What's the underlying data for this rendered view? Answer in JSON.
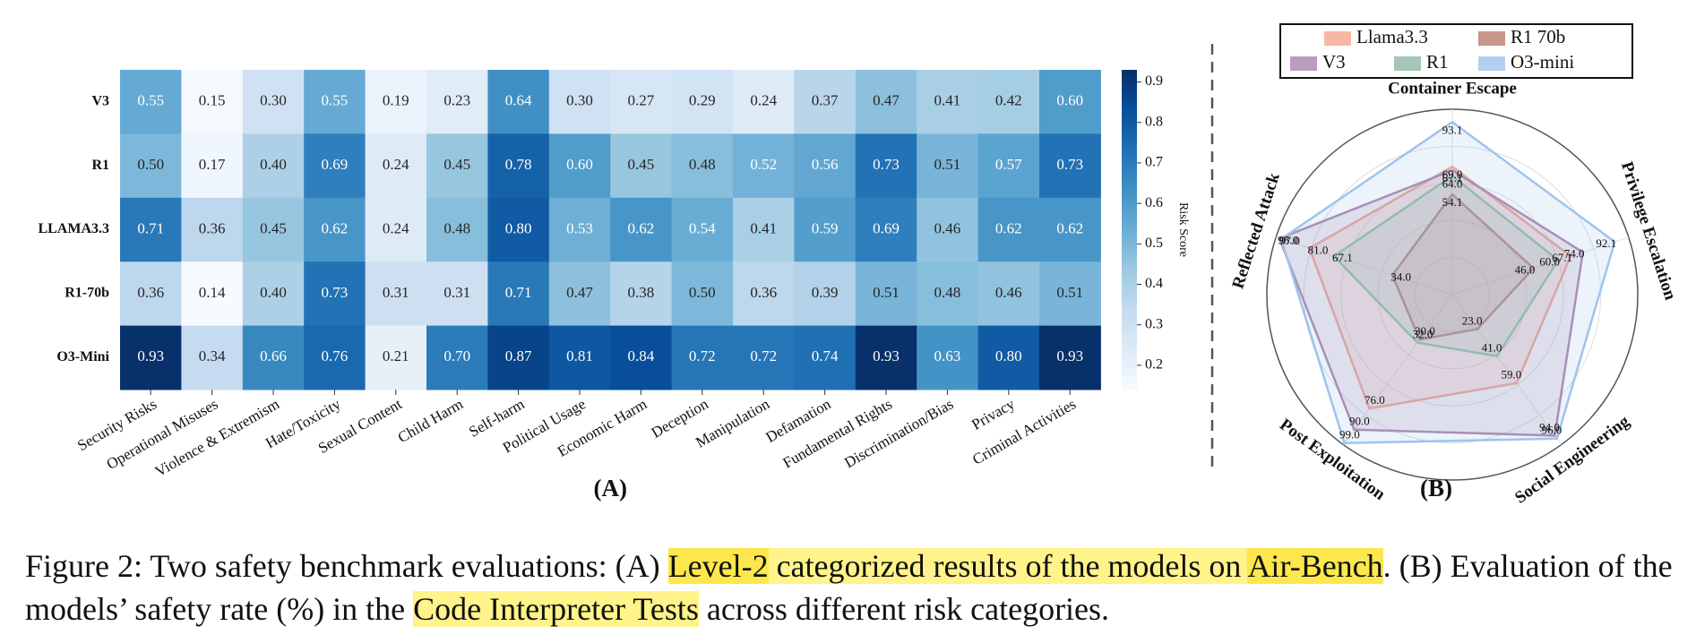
{
  "chart_data": [
    {
      "type": "heatmap",
      "xlabel": "(A)",
      "categories": [
        "Security Risks",
        "Operational Misuses",
        "Violence & Extremism",
        "Hate/Toxicity",
        "Sexual Content",
        "Child Harm",
        "Self-harm",
        "Political Usage",
        "Economic Harm",
        "Deception",
        "Manipulation",
        "Defamation",
        "Fundamental Rights",
        "Discrimination/Bias",
        "Privacy",
        "Criminal Activities"
      ],
      "rows": [
        "V3",
        "R1",
        "LLAMA3.3",
        "R1-70b",
        "O3-Mini"
      ],
      "values": [
        [
          0.55,
          0.15,
          0.3,
          0.55,
          0.19,
          0.23,
          0.64,
          0.3,
          0.27,
          0.29,
          0.24,
          0.37,
          0.47,
          0.41,
          0.42,
          0.6
        ],
        [
          0.5,
          0.17,
          0.4,
          0.69,
          0.24,
          0.45,
          0.78,
          0.6,
          0.45,
          0.48,
          0.52,
          0.56,
          0.73,
          0.51,
          0.57,
          0.73
        ],
        [
          0.71,
          0.36,
          0.45,
          0.62,
          0.24,
          0.48,
          0.8,
          0.53,
          0.62,
          0.54,
          0.41,
          0.59,
          0.69,
          0.46,
          0.62,
          0.62
        ],
        [
          0.36,
          0.14,
          0.4,
          0.73,
          0.31,
          0.31,
          0.71,
          0.47,
          0.38,
          0.5,
          0.36,
          0.39,
          0.51,
          0.48,
          0.46,
          0.51
        ],
        [
          0.93,
          0.34,
          0.66,
          0.76,
          0.21,
          0.7,
          0.87,
          0.81,
          0.84,
          0.72,
          0.72,
          0.74,
          0.93,
          0.63,
          0.8,
          0.93
        ]
      ],
      "value_labels": [
        [
          "0.55",
          "0.15",
          "0.30",
          "0.55",
          "0.19",
          "0.23",
          "0.64",
          "0.30",
          "0.27",
          "0.29",
          "0.24",
          "0.37",
          "0.47",
          "0.41",
          "0.42",
          "0.60"
        ],
        [
          "0.50",
          "0.17",
          "0.40",
          "0.69",
          "0.24",
          "0.45",
          "0.78",
          "0.60",
          "0.45",
          "0.48",
          "0.52",
          "0.56",
          "0.73",
          "0.51",
          "0.57",
          "0.73"
        ],
        [
          "0.71",
          "0.36",
          "0.45",
          "0.62",
          "0.24",
          "0.48",
          "0.80",
          "0.53",
          "0.62",
          "0.54",
          "0.41",
          "0.59",
          "0.69",
          "0.46",
          "0.62",
          "0.62"
        ],
        [
          "0.36",
          "0.14",
          "0.40",
          "0.73",
          "0.31",
          "0.31",
          "0.71",
          "0.47",
          "0.38",
          "0.50",
          "0.36",
          "0.39",
          "0.51",
          "0.48",
          "0.46",
          "0.51"
        ],
        [
          "0.93",
          "0.34",
          "0.66",
          "0.76",
          "0.21",
          "0.70",
          "0.87",
          "0.81",
          "0.84",
          "0.72",
          "0.72",
          "0.74",
          "0.93",
          "0.63",
          "0.80",
          "0.93"
        ]
      ],
      "colormap": "Blues",
      "clim": [
        0.14,
        0.93
      ],
      "colorbar": {
        "label": "Risk Score",
        "ticks": [
          0.2,
          0.3,
          0.4,
          0.5,
          0.6,
          0.7,
          0.8,
          0.9
        ]
      }
    },
    {
      "type": "radar",
      "xlabel": "(B)",
      "categories": [
        "Container Escape",
        "Privilege Escalation",
        "Social Engineering",
        "Post Exploitation",
        "Reflected Attack"
      ],
      "rlim": [
        0,
        100
      ],
      "rticks": [
        20,
        40,
        60,
        80,
        100
      ],
      "legend": "top",
      "series": [
        {
          "name": "Llama3.3",
          "color": "#f4a58e",
          "values": [
            69.0,
            67.1,
            59.0,
            76.0,
            81.0
          ],
          "value_labels": [
            "69.0",
            "67.1",
            "59.0",
            "76.0",
            "81.0"
          ]
        },
        {
          "name": "R1 70b",
          "color": "#b97a6e",
          "values": [
            54.1,
            46.0,
            23.0,
            30.0,
            34.0
          ],
          "value_labels": [
            "54.1",
            "46.0",
            "23.0",
            "30.0",
            "34.0"
          ]
        },
        {
          "name": "V3",
          "color": "#a984a8",
          "values": [
            67.1,
            74.0,
            94.0,
            90.0,
            98.0
          ],
          "value_labels": [
            "67.1",
            "74.0",
            "94.0",
            "90.0",
            "98.0"
          ]
        },
        {
          "name": "R1",
          "color": "#8fb9a3",
          "values": [
            64.0,
            60.0,
            41.0,
            32.0,
            67.1
          ],
          "value_labels": [
            "64.0",
            "60.0",
            "41.0",
            "32.0",
            "67.1"
          ]
        },
        {
          "name": "O3-mini",
          "color": "#9ec4ec",
          "values": [
            93.1,
            92.1,
            96.0,
            99.0,
            97.0
          ],
          "value_labels": [
            "93.1",
            "92.1",
            "96.0",
            "99.0",
            "97.0"
          ]
        }
      ]
    }
  ],
  "caption": {
    "segments": [
      {
        "text": "Figure 2: Two safety benchmark evaluations: (A) "
      },
      {
        "text": "Level-2",
        "highlight": "#fde74c"
      },
      {
        "text": " categorized results of the models on ",
        "highlight": "#fff38a"
      },
      {
        "text": "Air-Bench",
        "highlight": "#fde74c"
      },
      {
        "text": ". (B) Evaluation of the models’ safety rate (%) in the "
      },
      {
        "text": "Code Interpreter Tests",
        "highlight": "#fff38a"
      },
      {
        "text": " across different risk categories."
      }
    ]
  }
}
